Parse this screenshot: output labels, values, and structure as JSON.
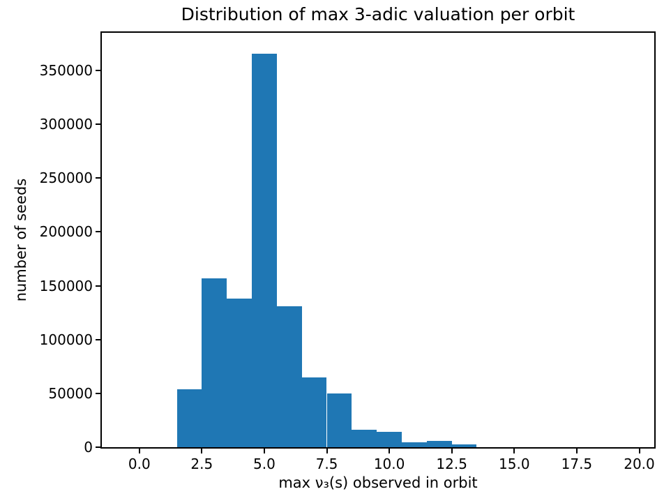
{
  "figure": {
    "background": "#ffffff",
    "spine_color": "#000000",
    "text_color": "#000000"
  },
  "chart_data": {
    "type": "bar",
    "subtype": "histogram",
    "title": "Distribution of max 3-adic valuation per orbit",
    "xlabel": "max ν₃(s) observed in orbit",
    "ylabel": "number of seeds",
    "bar_color": "#1f77b4",
    "grid": false,
    "legend_position": "none",
    "bin_edges": [
      1.5,
      2.5,
      3.5,
      4.5,
      5.5,
      6.5,
      7.5,
      8.5,
      9.5,
      10.5,
      11.5,
      12.5,
      13.5
    ],
    "bin_centers": [
      2,
      3,
      4,
      5,
      6,
      7,
      8,
      9,
      10,
      11,
      12,
      13
    ],
    "values": [
      54000,
      157000,
      138000,
      365500,
      131000,
      65000,
      50000,
      16000,
      14000,
      4500,
      5800,
      2500
    ],
    "xlim": [
      -1.5,
      20.6
    ],
    "ylim": [
      0,
      385000
    ],
    "xticks": {
      "values": [
        0,
        2.5,
        5,
        7.5,
        10,
        12.5,
        15,
        17.5,
        20
      ],
      "labels": [
        "0.0",
        "2.5",
        "5.0",
        "7.5",
        "10.0",
        "12.5",
        "15.0",
        "17.5",
        "20.0"
      ]
    },
    "yticks": {
      "values": [
        0,
        50000,
        100000,
        150000,
        200000,
        250000,
        300000,
        350000
      ],
      "labels": [
        "0",
        "50000",
        "100000",
        "150000",
        "200000",
        "250000",
        "300000",
        "350000"
      ]
    }
  }
}
